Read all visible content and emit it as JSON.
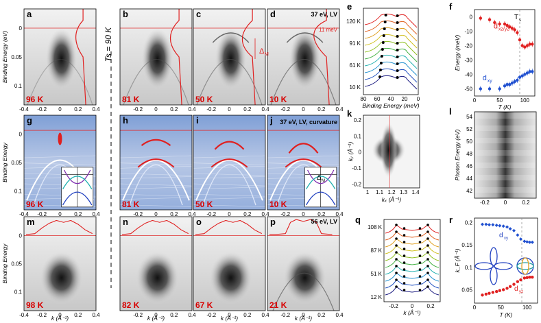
{
  "ts_label": "T",
  "ts_sub": "s",
  "ts_value": " = 90 K",
  "rows": [
    {
      "panels": [
        {
          "letter": "a",
          "temp": "96 K"
        },
        {
          "letter": "b",
          "temp": "81 K"
        },
        {
          "letter": "c",
          "temp": "50 K"
        },
        {
          "letter": "d",
          "temp": "10 K"
        }
      ]
    },
    {
      "panels": [
        {
          "letter": "g",
          "temp": "96 K"
        },
        {
          "letter": "h",
          "temp": "81 K"
        },
        {
          "letter": "i",
          "temp": "50 K"
        },
        {
          "letter": "j",
          "temp": "10 K"
        }
      ]
    },
    {
      "panels": [
        {
          "letter": "m",
          "temp": "98 K"
        },
        {
          "letter": "n",
          "temp": "82 K"
        },
        {
          "letter": "o",
          "temp": "67 K"
        },
        {
          "letter": "p",
          "temp": "21 K"
        }
      ]
    }
  ],
  "notes": {
    "d": "37 eV, LV",
    "j": "37 eV, LV, curvature",
    "p": "56 eV, LV",
    "gap_meV": "11 meV",
    "delta_c": "Δ",
    "delta_c_sub": "M",
    "delta_j": "Δ",
    "delta_j_sub": "M"
  },
  "axes": {
    "be_label": "Binding Energy",
    "be_unit": "(eV)",
    "be_ticks": [
      "0",
      "0.05",
      "0.1"
    ],
    "k_ticks": [
      "-0.4",
      "-0.2",
      "0",
      "0.2",
      "0.4"
    ],
    "k_ticks_inner": [
      "-0.2",
      "0",
      "0.2",
      "0.4"
    ],
    "k_label": "k",
    "k_unit": "(Å⁻¹)"
  },
  "e": {
    "letter": "e",
    "temps": [
      "120 K",
      "91 K",
      "61 K",
      "10 K"
    ],
    "xticks": [
      "80",
      "60",
      "40",
      "20",
      "0"
    ],
    "xlabel": "Binding Energy (meV)"
  },
  "f": {
    "letter": "f",
    "ylabel": "Energy (meV)",
    "yticks": [
      "0",
      "-10",
      "-20",
      "-30",
      "-40",
      "-50"
    ],
    "xticks": [
      "0",
      "50",
      "100"
    ],
    "xlabel": "T (K)",
    "ts_text": "T",
    "ts_sub": "s",
    "series": [
      {
        "name": "d",
        "sub": "xz/yz",
        "color": "#e02020",
        "T": [
          12,
          30,
          40,
          50,
          60,
          65,
          70,
          75,
          80,
          85,
          90,
          95,
          100,
          105,
          110,
          115
        ],
        "E": [
          -1,
          -2,
          -4,
          -5,
          -5,
          -6,
          -7,
          -8,
          -9,
          -11,
          -16,
          -20,
          -21,
          -20,
          -19,
          -19
        ]
      },
      {
        "name": "d",
        "sub": "xy",
        "color": "#2050d0",
        "T": [
          12,
          30,
          50,
          60,
          65,
          70,
          75,
          80,
          85,
          90,
          95,
          100,
          105,
          110,
          115
        ],
        "E": [
          -50,
          -50,
          -50,
          -48,
          -47,
          -47,
          -46,
          -45,
          -44,
          -42,
          -41,
          -40,
          -39,
          -38,
          -38
        ]
      }
    ]
  },
  "k": {
    "letter": "k",
    "ylabel": "kᵧ (Å⁻¹)",
    "xlabel": "kₓ (Å⁻¹)",
    "yticks": [
      "0.2",
      "0.1",
      "0",
      "-0.1",
      "-0.2"
    ],
    "xticks": [
      "1",
      "1.1",
      "1.2",
      "1.3",
      "1.4"
    ]
  },
  "l": {
    "letter": "l",
    "ylabel": "Photon Energy (eV)",
    "yticks": [
      "54",
      "52",
      "50",
      "48",
      "46",
      "44",
      "42"
    ],
    "xticks": [
      "-0.2",
      "0",
      "0.2"
    ]
  },
  "q": {
    "letter": "q",
    "temps": [
      "108 K",
      "87 K",
      "51 K",
      "12 K"
    ],
    "xticks": [
      "-0.2",
      "0",
      "0.2"
    ],
    "xlabel": "k (Å⁻¹)"
  },
  "r": {
    "letter": "r",
    "ylabel": "k_F (Å⁻¹)",
    "yticks": [
      "0.2",
      "0.15",
      "0.1",
      "0.05"
    ],
    "xticks": [
      "0",
      "50",
      "100"
    ],
    "xlabel": "T (K)",
    "label_xy": "d",
    "label_xy_sub": "xy",
    "label_yz": "d",
    "label_yz_sub": "yz",
    "series": [
      {
        "name": "dxy",
        "color": "#2050d0",
        "T": [
          15,
          22,
          28,
          35,
          42,
          48,
          55,
          62,
          68,
          75,
          82,
          88,
          95,
          100,
          105,
          110
        ],
        "kF": [
          0.196,
          0.196,
          0.195,
          0.195,
          0.194,
          0.193,
          0.192,
          0.19,
          0.186,
          0.182,
          0.172,
          0.163,
          0.158,
          0.157,
          0.156,
          0.156
        ]
      },
      {
        "name": "dyz",
        "color": "#e02020",
        "T": [
          15,
          22,
          28,
          35,
          42,
          48,
          55,
          62,
          68,
          75,
          82,
          88,
          95,
          100,
          105,
          110
        ],
        "kF": [
          0.038,
          0.04,
          0.042,
          0.044,
          0.046,
          0.048,
          0.05,
          0.053,
          0.057,
          0.062,
          0.068,
          0.072,
          0.076,
          0.077,
          0.078,
          0.078
        ]
      }
    ]
  }
}
